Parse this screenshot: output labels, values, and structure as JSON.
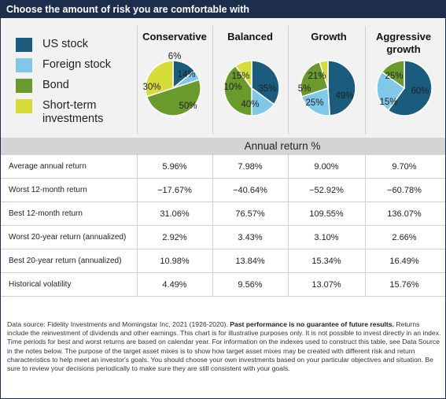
{
  "header": {
    "title": "Choose the amount of risk you are comfortable with"
  },
  "legend": [
    {
      "label": "US stock",
      "color": "#1a5b7e"
    },
    {
      "label": "Foreign stock",
      "color": "#7fc8ea"
    },
    {
      "label": "Bond",
      "color": "#6a9a2c"
    },
    {
      "label": "Short-term investments",
      "color": "#d6dd3a"
    }
  ],
  "chart_data": {
    "type": "pie",
    "series_names": [
      "US stock",
      "Foreign stock",
      "Bond",
      "Short-term investments"
    ],
    "colors": [
      "#1a5b7e",
      "#7fc8ea",
      "#6a9a2c",
      "#d6dd3a"
    ],
    "pies": [
      {
        "name": "Conservative",
        "values": [
          14,
          6,
          50,
          30
        ],
        "labels": [
          "14%",
          "6%",
          "50%",
          "30%"
        ]
      },
      {
        "name": "Balanced",
        "values": [
          35,
          15,
          40,
          10
        ],
        "labels": [
          "35%",
          "15%",
          "40%",
          "10%"
        ]
      },
      {
        "name": "Growth",
        "values": [
          49,
          21,
          25,
          5
        ],
        "labels": [
          "49%",
          "21%",
          "25%",
          "5%"
        ]
      },
      {
        "name": "Aggressive growth",
        "values": [
          60,
          25,
          15,
          0
        ],
        "labels": [
          "60%",
          "25%",
          "15%",
          ""
        ]
      }
    ]
  },
  "table": {
    "band_label": "Annual return %",
    "rows": [
      {
        "label": "Average annual return",
        "values": [
          "5.96%",
          "7.98%",
          "9.00%",
          "9.70%"
        ]
      },
      {
        "label": "Worst 12-month return",
        "values": [
          "−17.67%",
          "−40.64%",
          "−52.92%",
          "−60.78%"
        ]
      },
      {
        "label": "Best 12-month return",
        "values": [
          "31.06%",
          "76.57%",
          "109.55%",
          "136.07%"
        ]
      },
      {
        "label": "Worst 20-year return (annualized)",
        "values": [
          "2.92%",
          "3.43%",
          "3.10%",
          "2.66%"
        ]
      },
      {
        "label": "Best 20-year return (annualized)",
        "values": [
          "10.98%",
          "13.84%",
          "15.34%",
          "16.49%"
        ]
      },
      {
        "label": "Historical volatility",
        "values": [
          "4.49%",
          "9.56%",
          "13.07%",
          "15.76%"
        ]
      }
    ]
  },
  "footnote": {
    "prefix": "Data source: Fidelity Investments and Morningstar Inc, 2021 (1926-2020). ",
    "bold": "Past performance is no guarantee of future results.",
    "rest": " Returns include the reinvestment of dividends and other earnings. This chart is for illustrative purposes only. It is not possible to invest directly in an index. Time periods for best and worst returns are based on calendar year. For information on the indexes used to construct this table, see Data Source in the notes below. The purpose of the target asset mixes is to show how target asset mixes may be created with different risk and return characteristics to help meet an investor's goals. You should choose your own investments based on your particular objectives and situation. Be sure to review your decisions periodically to make sure they are still consistent with your goals."
  }
}
